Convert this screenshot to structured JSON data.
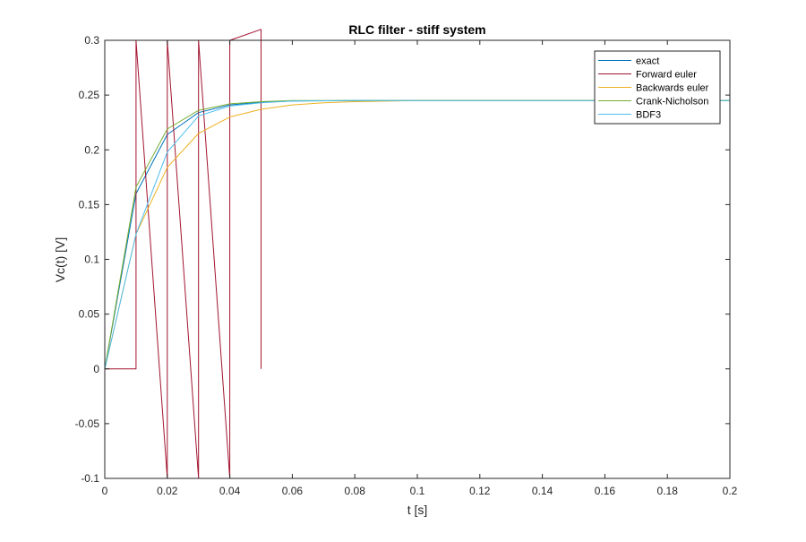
{
  "chart_data": {
    "type": "line",
    "title": "RLC filter - stiff system",
    "xlabel": "t [s]",
    "ylabel": "Vc(t) [V]",
    "xlim": [
      0,
      0.2
    ],
    "ylim": [
      -0.1,
      0.3
    ],
    "xticks": [
      0,
      0.02,
      0.04,
      0.06,
      0.08,
      0.1,
      0.12,
      0.14,
      0.16,
      0.18,
      0.2
    ],
    "xtick_labels": [
      "0",
      "0.02",
      "0.04",
      "0.06",
      "0.08",
      "0.1",
      "0.12",
      "0.14",
      "0.16",
      "0.18",
      "0.2"
    ],
    "yticks": [
      -0.1,
      -0.05,
      0,
      0.05,
      0.1,
      0.15,
      0.2,
      0.25,
      0.3
    ],
    "ytick_labels": [
      "-0.1",
      "-0.05",
      "0",
      "0.05",
      "0.1",
      "0.15",
      "0.2",
      "0.25",
      "0.3"
    ],
    "grid": false,
    "legend_position": "top-right",
    "series": [
      {
        "name": "exact",
        "color": "#0072BD",
        "x": [
          0,
          0.01,
          0.02,
          0.03,
          0.04,
          0.05,
          0.06,
          0.08,
          0.1,
          0.12,
          0.14,
          0.16,
          0.18,
          0.2
        ],
        "y": [
          0,
          0.16,
          0.214,
          0.234,
          0.241,
          0.2435,
          0.2445,
          0.245,
          0.245,
          0.245,
          0.245,
          0.245,
          0.245,
          0.245
        ]
      },
      {
        "name": "Forward euler",
        "color": "#A2142F",
        "x": [
          0,
          0.01,
          0.01,
          0.02,
          0.02,
          0.03,
          0.03,
          0.04,
          0.04,
          0.05,
          0.05
        ],
        "y": [
          0,
          0,
          0.3,
          -0.1,
          0.3,
          -0.1,
          0.3,
          -0.1,
          0.3,
          0.31,
          0
        ]
      },
      {
        "name": "Backwards euler",
        "color": "#EDB120",
        "x": [
          0,
          0.01,
          0.02,
          0.03,
          0.04,
          0.05,
          0.06,
          0.07,
          0.08,
          0.1,
          0.12,
          0.14,
          0.16,
          0.18,
          0.2
        ],
        "y": [
          0,
          0.123,
          0.184,
          0.215,
          0.23,
          0.237,
          0.241,
          0.243,
          0.244,
          0.245,
          0.245,
          0.245,
          0.245,
          0.245,
          0.245
        ]
      },
      {
        "name": "Crank-Nicholson",
        "color": "#77AC30",
        "x": [
          0,
          0.01,
          0.02,
          0.03,
          0.04,
          0.05,
          0.06,
          0.08,
          0.1,
          0.12,
          0.14,
          0.16,
          0.18,
          0.2
        ],
        "y": [
          0,
          0.166,
          0.219,
          0.236,
          0.242,
          0.244,
          0.245,
          0.245,
          0.245,
          0.245,
          0.245,
          0.245,
          0.245,
          0.245
        ]
      },
      {
        "name": "BDF3",
        "color": "#4DBEEE",
        "x": [
          0,
          0.01,
          0.02,
          0.03,
          0.04,
          0.05,
          0.06,
          0.08,
          0.1,
          0.12,
          0.14,
          0.16,
          0.18,
          0.2
        ],
        "y": [
          0,
          0.123,
          0.198,
          0.231,
          0.24,
          0.243,
          0.2445,
          0.245,
          0.245,
          0.245,
          0.245,
          0.245,
          0.245,
          0.245
        ]
      }
    ]
  }
}
